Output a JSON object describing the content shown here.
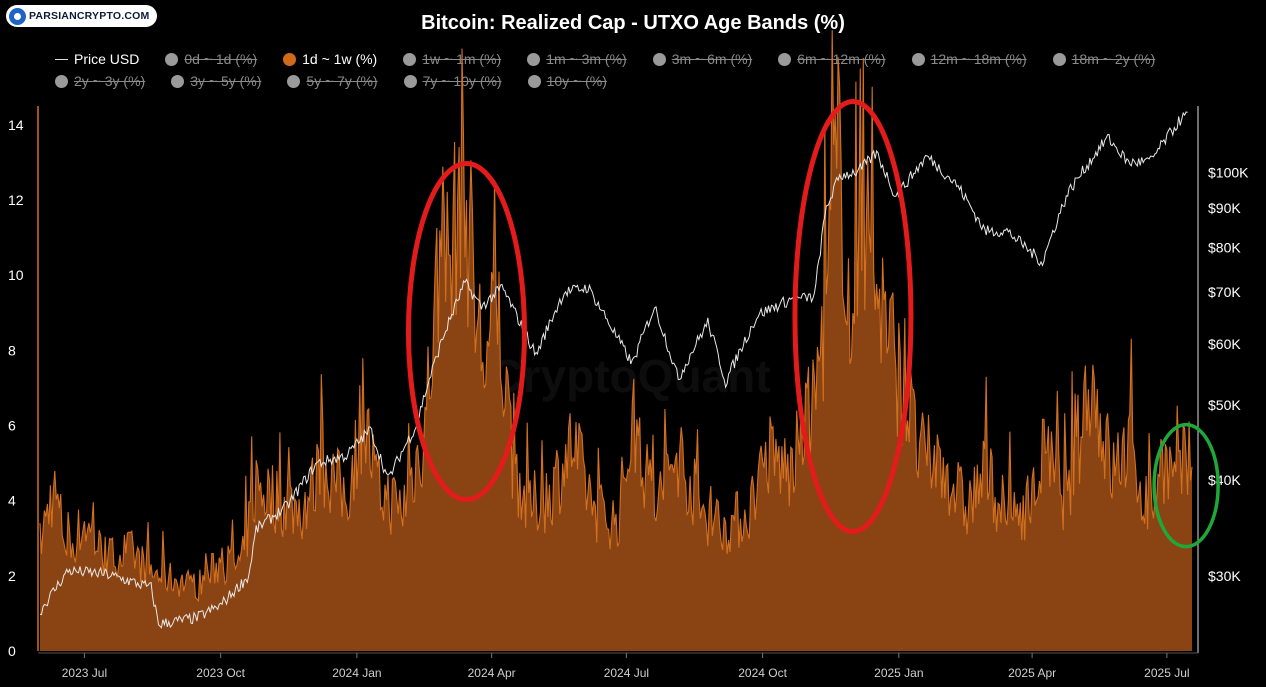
{
  "logo": {
    "text": "PARSIANCRYPTO.COM"
  },
  "watermark": "CryptoQuant",
  "colors": {
    "background": "#000000",
    "area_fill": "#8a4413",
    "area_line": "#d3701f",
    "price_line": "#e8e8e8",
    "legend_off": "#8a8a8a",
    "circle_red": "#e31b1b",
    "circle_green": "#1fa83a"
  },
  "chart_data": {
    "type": "area",
    "title": "Bitcoin: Realized Cap - UTXO Age Bands (%)",
    "legend": [
      {
        "label": "Price USD",
        "active": true,
        "kind": "line",
        "color": "#dddddd"
      },
      {
        "label": "0d ~ 1d (%)",
        "active": false,
        "kind": "circle",
        "color": "#9a9a9a"
      },
      {
        "label": "1d ~ 1w (%)",
        "active": true,
        "kind": "circle",
        "color": "#d26a1c"
      },
      {
        "label": "1w ~ 1m (%)",
        "active": false,
        "kind": "circle",
        "color": "#9a9a9a"
      },
      {
        "label": "1m ~ 3m (%)",
        "active": false,
        "kind": "circle",
        "color": "#9a9a9a"
      },
      {
        "label": "3m ~ 6m (%)",
        "active": false,
        "kind": "circle",
        "color": "#9a9a9a"
      },
      {
        "label": "6m ~ 12m (%)",
        "active": false,
        "kind": "circle",
        "color": "#9a9a9a"
      },
      {
        "label": "12m ~ 18m (%)",
        "active": false,
        "kind": "circle",
        "color": "#9a9a9a"
      },
      {
        "label": "18m ~ 2y (%)",
        "active": false,
        "kind": "circle",
        "color": "#9a9a9a"
      },
      {
        "label": "2y ~ 3y (%)",
        "active": false,
        "kind": "circle",
        "color": "#9a9a9a"
      },
      {
        "label": "3y ~ 5y (%)",
        "active": false,
        "kind": "circle",
        "color": "#9a9a9a"
      },
      {
        "label": "5y ~ 7y (%)",
        "active": false,
        "kind": "circle",
        "color": "#9a9a9a"
      },
      {
        "label": "7y ~ 10y (%)",
        "active": false,
        "kind": "circle",
        "color": "#9a9a9a"
      },
      {
        "label": "10y ~ (%)",
        "active": false,
        "kind": "circle",
        "color": "#9a9a9a"
      }
    ],
    "x_ticks": [
      "2023 Jul",
      "2023 Oct",
      "2024 Jan",
      "2024 Apr",
      "2024 Jul",
      "2024 Oct",
      "2025 Jan",
      "2025 Apr",
      "2025 Jul"
    ],
    "x_range": [
      "2023-06-01",
      "2025-07-20"
    ],
    "y_left": {
      "ticks": [
        "0",
        "2",
        "4",
        "6",
        "8",
        "10",
        "12",
        "14"
      ],
      "range": [
        0,
        14.5
      ]
    },
    "y_right": {
      "ticks": [
        "$30K",
        "$40K",
        "$50K",
        "$60K",
        "$70K",
        "$80K",
        "$90K",
        "$100K"
      ],
      "scale": "log",
      "range": [
        24000,
        122000
      ]
    },
    "grid": false,
    "series": [
      {
        "name": "1d ~ 1w (%)",
        "type": "area",
        "points": [
          [
            "2023-06-01",
            3.0
          ],
          [
            "2023-06-10",
            4.6
          ],
          [
            "2023-06-20",
            2.8
          ],
          [
            "2023-07-01",
            3.6
          ],
          [
            "2023-07-15",
            2.6
          ],
          [
            "2023-08-01",
            2.8
          ],
          [
            "2023-08-15",
            2.2
          ],
          [
            "2023-09-01",
            2.0
          ],
          [
            "2023-09-15",
            1.8
          ],
          [
            "2023-10-01",
            2.5
          ],
          [
            "2023-10-15",
            2.4
          ],
          [
            "2023-10-25",
            4.7
          ],
          [
            "2023-11-10",
            4.2
          ],
          [
            "2023-11-25",
            4.0
          ],
          [
            "2023-12-10",
            5.2
          ],
          [
            "2023-12-25",
            4.3
          ],
          [
            "2024-01-05",
            6.7
          ],
          [
            "2024-01-15",
            4.5
          ],
          [
            "2024-02-01",
            4.0
          ],
          [
            "2024-02-15",
            6.0
          ],
          [
            "2024-02-25",
            10.6
          ],
          [
            "2024-03-05",
            11.0
          ],
          [
            "2024-03-12",
            13.8
          ],
          [
            "2024-03-20",
            9.8
          ],
          [
            "2024-03-28",
            8.0
          ],
          [
            "2024-04-05",
            9.6
          ],
          [
            "2024-04-15",
            5.5
          ],
          [
            "2024-04-25",
            4.0
          ],
          [
            "2024-05-10",
            4.4
          ],
          [
            "2024-05-25",
            5.8
          ],
          [
            "2024-06-10",
            4.0
          ],
          [
            "2024-06-25",
            3.6
          ],
          [
            "2024-07-05",
            6.5
          ],
          [
            "2024-07-20",
            4.0
          ],
          [
            "2024-08-05",
            5.6
          ],
          [
            "2024-08-20",
            4.0
          ],
          [
            "2024-09-05",
            3.5
          ],
          [
            "2024-09-20",
            3.8
          ],
          [
            "2024-10-05",
            5.5
          ],
          [
            "2024-10-20",
            5.0
          ],
          [
            "2024-11-05",
            7.0
          ],
          [
            "2024-11-12",
            9.5
          ],
          [
            "2024-11-22",
            14.3
          ],
          [
            "2024-12-01",
            8.0
          ],
          [
            "2024-12-06",
            13.1
          ],
          [
            "2024-12-15",
            10.7
          ],
          [
            "2024-12-25",
            9.0
          ],
          [
            "2025-01-05",
            7.0
          ],
          [
            "2025-01-15",
            5.5
          ],
          [
            "2025-02-01",
            5.2
          ],
          [
            "2025-02-15",
            4.0
          ],
          [
            "2025-03-01",
            5.0
          ],
          [
            "2025-03-15",
            3.8
          ],
          [
            "2025-04-01",
            4.2
          ],
          [
            "2025-04-09",
            5.5
          ],
          [
            "2025-04-25",
            4.2
          ],
          [
            "2025-05-10",
            7.8
          ],
          [
            "2025-05-25",
            5.0
          ],
          [
            "2025-06-05",
            5.8
          ],
          [
            "2025-06-20",
            3.8
          ],
          [
            "2025-06-28",
            5.5
          ],
          [
            "2025-07-08",
            4.5
          ],
          [
            "2025-07-14",
            5.2
          ],
          [
            "2025-07-18",
            4.7
          ]
        ]
      },
      {
        "name": "Price USD",
        "type": "line",
        "axis": "right",
        "points": [
          [
            "2023-06-01",
            27000
          ],
          [
            "2023-06-20",
            30500
          ],
          [
            "2023-07-15",
            30200
          ],
          [
            "2023-08-15",
            29000
          ],
          [
            "2023-08-20",
            26000
          ],
          [
            "2023-09-15",
            26500
          ],
          [
            "2023-10-01",
            27500
          ],
          [
            "2023-10-20",
            30000
          ],
          [
            "2023-10-25",
            34500
          ],
          [
            "2023-11-15",
            37000
          ],
          [
            "2023-12-05",
            42000
          ],
          [
            "2023-12-25",
            43000
          ],
          [
            "2024-01-10",
            46500
          ],
          [
            "2024-01-22",
            40000
          ],
          [
            "2024-02-10",
            47000
          ],
          [
            "2024-02-28",
            61000
          ],
          [
            "2024-03-14",
            72000
          ],
          [
            "2024-03-25",
            67000
          ],
          [
            "2024-04-08",
            71000
          ],
          [
            "2024-04-20",
            64000
          ],
          [
            "2024-05-01",
            58000
          ],
          [
            "2024-05-20",
            70000
          ],
          [
            "2024-06-05",
            71000
          ],
          [
            "2024-06-25",
            61000
          ],
          [
            "2024-07-05",
            56500
          ],
          [
            "2024-07-20",
            67000
          ],
          [
            "2024-08-05",
            54000
          ],
          [
            "2024-08-25",
            64000
          ],
          [
            "2024-09-06",
            53500
          ],
          [
            "2024-09-28",
            65500
          ],
          [
            "2024-10-20",
            68500
          ],
          [
            "2024-11-05",
            69000
          ],
          [
            "2024-11-13",
            90000
          ],
          [
            "2024-11-22",
            99000
          ],
          [
            "2024-12-05",
            100500
          ],
          [
            "2024-12-17",
            106000
          ],
          [
            "2024-12-30",
            93000
          ],
          [
            "2025-01-20",
            105000
          ],
          [
            "2025-02-10",
            96000
          ],
          [
            "2025-02-28",
            84000
          ],
          [
            "2025-03-15",
            84000
          ],
          [
            "2025-04-08",
            76500
          ],
          [
            "2025-04-25",
            94000
          ],
          [
            "2025-05-22",
            111000
          ],
          [
            "2025-06-05",
            103000
          ],
          [
            "2025-06-20",
            103500
          ],
          [
            "2025-07-10",
            117000
          ],
          [
            "2025-07-15",
            119000
          ]
        ]
      }
    ],
    "annotations": [
      {
        "shape": "ellipse",
        "color": "red",
        "center": [
          "2024-03-15",
          8.5
        ]
      },
      {
        "shape": "ellipse",
        "color": "red",
        "center": [
          "2024-12-01",
          8.9
        ]
      },
      {
        "shape": "ellipse",
        "color": "green",
        "center": [
          "2025-07-14",
          4.4
        ]
      }
    ]
  }
}
